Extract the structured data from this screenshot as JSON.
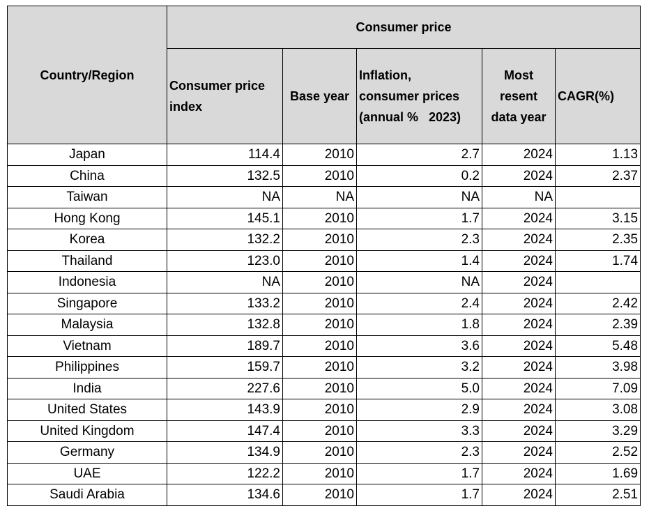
{
  "header": {
    "country_region": "Country/Region",
    "group": "Consumer price",
    "columns": {
      "cpi_line1": "Consumer price",
      "cpi_line2": "index",
      "base_year": "Base year",
      "inflation_line1": "Inflation,",
      "inflation_line2": "consumer prices",
      "inflation_line3": "(annual %   2023)",
      "recent_line1": "Most",
      "recent_line2": "resent",
      "recent_line3": "data year",
      "cagr": "CAGR(%)"
    }
  },
  "rows": [
    {
      "country": "Japan",
      "cpi": "114.4",
      "base_year": "2010",
      "inflation": "2.7",
      "year": "2024",
      "cagr": "1.13"
    },
    {
      "country": "China",
      "cpi": "132.5",
      "base_year": "2010",
      "inflation": "0.2",
      "year": "2024",
      "cagr": "2.37"
    },
    {
      "country": "Taiwan",
      "cpi": "NA",
      "base_year": "NA",
      "inflation": "NA",
      "year": "NA",
      "cagr": ""
    },
    {
      "country": "Hong Kong",
      "cpi": "145.1",
      "base_year": "2010",
      "inflation": "1.7",
      "year": "2024",
      "cagr": "3.15"
    },
    {
      "country": "Korea",
      "cpi": "132.2",
      "base_year": "2010",
      "inflation": "2.3",
      "year": "2024",
      "cagr": "2.35"
    },
    {
      "country": "Thailand",
      "cpi": "123.0",
      "base_year": "2010",
      "inflation": "1.4",
      "year": "2024",
      "cagr": "1.74"
    },
    {
      "country": "Indonesia",
      "cpi": "NA",
      "base_year": "2010",
      "inflation": "NA",
      "year": "2024",
      "cagr": ""
    },
    {
      "country": "Singapore",
      "cpi": "133.2",
      "base_year": "2010",
      "inflation": "2.4",
      "year": "2024",
      "cagr": "2.42"
    },
    {
      "country": "Malaysia",
      "cpi": "132.8",
      "base_year": "2010",
      "inflation": "1.8",
      "year": "2024",
      "cagr": "2.39"
    },
    {
      "country": "Vietnam",
      "cpi": "189.7",
      "base_year": "2010",
      "inflation": "3.6",
      "year": "2024",
      "cagr": "5.48"
    },
    {
      "country": "Philippines",
      "cpi": "159.7",
      "base_year": "2010",
      "inflation": "3.2",
      "year": "2024",
      "cagr": "3.98"
    },
    {
      "country": "India",
      "cpi": "227.6",
      "base_year": "2010",
      "inflation": "5.0",
      "year": "2024",
      "cagr": "7.09"
    },
    {
      "country": "United States",
      "cpi": "143.9",
      "base_year": "2010",
      "inflation": "2.9",
      "year": "2024",
      "cagr": "3.08"
    },
    {
      "country": "United Kingdom",
      "cpi": "147.4",
      "base_year": "2010",
      "inflation": "3.3",
      "year": "2024",
      "cagr": "3.29"
    },
    {
      "country": "Germany",
      "cpi": "134.9",
      "base_year": "2010",
      "inflation": "2.3",
      "year": "2024",
      "cagr": "2.52"
    },
    {
      "country": "UAE",
      "cpi": "122.2",
      "base_year": "2010",
      "inflation": "1.7",
      "year": "2024",
      "cagr": "1.69"
    },
    {
      "country": "Saudi Arabia",
      "cpi": "134.6",
      "base_year": "2010",
      "inflation": "1.7",
      "year": "2024",
      "cagr": "2.51"
    }
  ]
}
